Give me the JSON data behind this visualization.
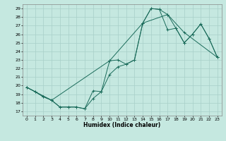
{
  "title": "",
  "xlabel": "Humidex (Indice chaleur)",
  "ylabel": "",
  "background_color": "#c5e8e0",
  "grid_color": "#a8cfc8",
  "line_color": "#1a6b5a",
  "xlim": [
    -0.5,
    23.5
  ],
  "ylim": [
    16.5,
    29.5
  ],
  "xticks": [
    0,
    1,
    2,
    3,
    4,
    5,
    6,
    7,
    8,
    9,
    10,
    11,
    12,
    13,
    14,
    15,
    16,
    17,
    18,
    19,
    20,
    21,
    22,
    23
  ],
  "yticks": [
    17,
    18,
    19,
    20,
    21,
    22,
    23,
    24,
    25,
    26,
    27,
    28,
    29
  ],
  "line1": {
    "x": [
      0,
      1,
      2,
      3,
      4,
      5,
      6,
      7,
      8,
      9,
      10,
      11,
      12,
      13,
      14,
      15,
      16,
      17,
      18,
      19,
      20,
      21,
      22,
      23
    ],
    "y": [
      19.8,
      19.3,
      18.7,
      18.3,
      17.5,
      17.5,
      17.5,
      17.3,
      19.4,
      19.3,
      22.9,
      23.0,
      22.5,
      23.0,
      27.3,
      29.0,
      28.9,
      28.3,
      26.7,
      25.0,
      26.0,
      27.2,
      25.5,
      23.3
    ]
  },
  "line2": {
    "x": [
      0,
      1,
      2,
      3,
      4,
      5,
      6,
      7,
      8,
      9,
      10,
      11,
      12,
      13,
      14,
      15,
      16,
      17,
      18,
      19,
      20,
      21,
      22,
      23
    ],
    "y": [
      19.8,
      19.3,
      18.7,
      18.3,
      17.5,
      17.5,
      17.5,
      17.3,
      18.5,
      19.3,
      21.3,
      22.2,
      22.5,
      23.0,
      27.3,
      29.0,
      28.9,
      26.5,
      26.7,
      25.0,
      26.0,
      27.2,
      25.5,
      23.3
    ]
  },
  "line3": {
    "x": [
      0,
      3,
      10,
      14,
      17,
      19,
      23
    ],
    "y": [
      19.8,
      18.3,
      22.9,
      27.3,
      28.3,
      26.2,
      23.3
    ]
  },
  "figsize": [
    3.2,
    2.0
  ],
  "dpi": 100
}
